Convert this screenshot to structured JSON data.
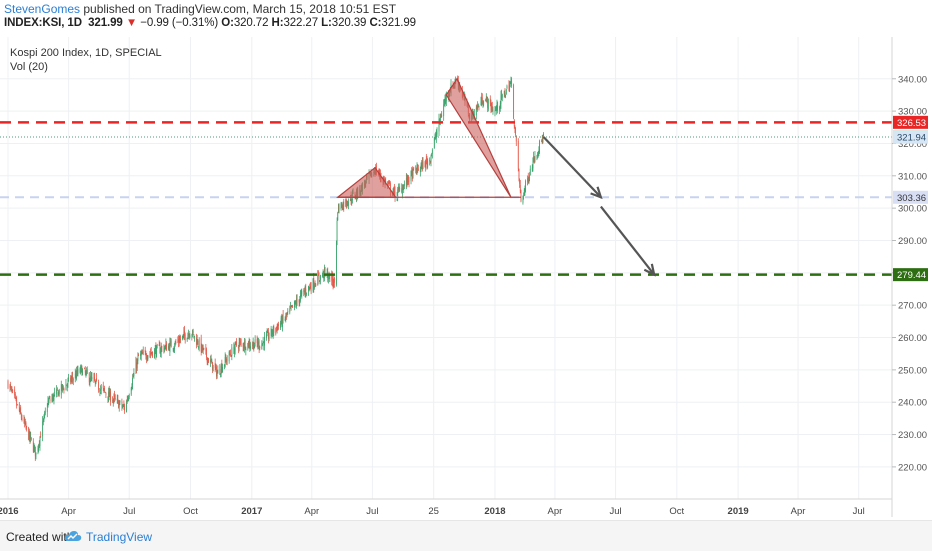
{
  "header": {
    "author": "StevenGomes",
    "published": " published on TradingView.com, March 15, 2018 10:51 EST",
    "symbol": "INDEX:KSI, 1D",
    "last": "321.99",
    "change_arrow": "▼",
    "change": "−0.99 (−0.31%)",
    "o_label": "O:",
    "o_value": "320.72",
    "h_label": "H:",
    "h_value": "322.27",
    "l_label": "L:",
    "l_value": "320.39",
    "c_label": "C:",
    "c_value": "321.99"
  },
  "footer": {
    "created_with": "Created with",
    "brand": "TradingView"
  },
  "colors": {
    "up": "#3aa36b",
    "down": "#e55a4c",
    "red_line": "#e82626",
    "green_line": "#2e6e12",
    "blue_dotted": "#6aa7cf",
    "pattern_fill": "#c9605e",
    "arrow": "#555555",
    "grid": "#eef0f3"
  },
  "chart_data": {
    "type": "candlestick",
    "title": "Kospi 200 Index, 1D, SPECIAL",
    "indicator": "Vol (20)",
    "xlabel": "",
    "ylabel": "",
    "ylim": [
      217,
      345
    ],
    "y_ticks": [
      "220.00",
      "230.00",
      "240.00",
      "250.00",
      "260.00",
      "270.00",
      "280.00",
      "290.00",
      "300.00",
      "310.00",
      "320.00",
      "330.00",
      "340.00"
    ],
    "x_ticks": [
      "2016",
      "Apr",
      "Jul",
      "Oct",
      "2017",
      "Apr",
      "Jul",
      "25",
      "2018",
      "Apr",
      "Jul",
      "Oct",
      "2019",
      "Apr",
      "Jul"
    ],
    "price_path": {
      "x": [
        "2016-01-01",
        "2016-01-20",
        "2016-02-12",
        "2016-03-01",
        "2016-04-20",
        "2016-05-20",
        "2016-06-24",
        "2016-07-15",
        "2016-09-07",
        "2016-10-01",
        "2016-11-10",
        "2016-12-10",
        "2017-01-15",
        "2017-02-20",
        "2017-03-20",
        "2017-04-20",
        "2017-05-05",
        "2017-05-10",
        "2017-06-10",
        "2017-07-05",
        "2017-08-05",
        "2017-09-01",
        "2017-09-25",
        "2017-10-20",
        "2017-11-05",
        "2017-11-25",
        "2017-12-15",
        "2018-01-01",
        "2018-01-25",
        "2018-02-09",
        "2018-03-01",
        "2018-03-15"
      ],
      "y": [
        246,
        236,
        224,
        240,
        250,
        244,
        238,
        254,
        258,
        262,
        249,
        258,
        258,
        266,
        274,
        280,
        277,
        300,
        305,
        312,
        304,
        311,
        315,
        335,
        340,
        328,
        334,
        330,
        339,
        302,
        316,
        321.99
      ]
    },
    "horizontal_levels": [
      {
        "label": "326.53",
        "value": 326.53,
        "style": "red dashed"
      },
      {
        "label": "321.99",
        "value": 321.99,
        "style": "last price"
      },
      {
        "label": "321.94",
        "value": 321.94,
        "style": "blue dotted"
      },
      {
        "label": "303.36",
        "value": 303.36,
        "style": "neckline dashed"
      },
      {
        "label": "279.44",
        "value": 279.44,
        "style": "green dashed"
      }
    ],
    "pattern": "head and shoulders",
    "pattern_points": {
      "x": [
        "2017-05-10",
        "2017-07-05",
        "2017-08-05",
        "2017-10-20",
        "2017-11-05",
        "2018-01-25",
        "2018-02-09"
      ],
      "y": [
        303.36,
        312.5,
        303.36,
        335,
        340,
        303.36,
        303.36
      ]
    },
    "projection_arrows": [
      {
        "from_x": "2018-03-15",
        "from_y": 322,
        "to_x": "2018-06-09",
        "to_y": 303.36
      },
      {
        "from_x": "2018-06-09",
        "from_y": 300.5,
        "to_x": "2018-08-28",
        "to_y": 279.44
      }
    ]
  }
}
